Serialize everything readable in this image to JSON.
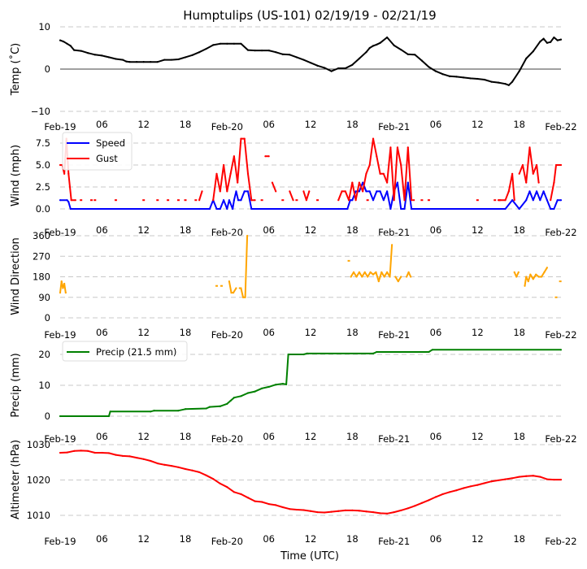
{
  "title": "Humptulips (US-101) 02/19/19 - 02/21/19",
  "xlabel": "Time (UTC)",
  "x_tick_labels": [
    "Feb-19",
    "06",
    "12",
    "18",
    "Feb-20",
    "06",
    "12",
    "18",
    "Feb-21",
    "06",
    "12",
    "18",
    "Feb-22"
  ],
  "chart_data": [
    {
      "type": "line",
      "name": "temperature",
      "ylabel": "Temp ($^\\circ$C)",
      "ylabel_display": "Temp (˚C)",
      "x_unit": "hours since 2019-02-19 00:00 UTC",
      "xlim": [
        0,
        72
      ],
      "ylim": [
        -10,
        10
      ],
      "yticks": [
        -10,
        0,
        10
      ],
      "ytick_labels": [
        "−10",
        "0",
        "10"
      ],
      "grid": "horizontal dashed",
      "zero_line": true,
      "series": [
        {
          "name": "Temp",
          "color": "#000000",
          "x": [
            0,
            0.5,
            1,
            1.5,
            2,
            3,
            4,
            5,
            6,
            7,
            8,
            9,
            9.5,
            10,
            11,
            12,
            13,
            14,
            15,
            16,
            17,
            18,
            19,
            20,
            21,
            22,
            23,
            24,
            25,
            26,
            27,
            28,
            29,
            30,
            31,
            32,
            33,
            34,
            35,
            36,
            37,
            38,
            39,
            40,
            41,
            42,
            43,
            44,
            44.5,
            45,
            45.5,
            46,
            47,
            48,
            49,
            50,
            51,
            52,
            53,
            54,
            55,
            56,
            57,
            58,
            59,
            60,
            61,
            62,
            63,
            64,
            64.5,
            65,
            66,
            67,
            68,
            69,
            69.5,
            70,
            70.5,
            71,
            71.5,
            72
          ],
          "y": [
            6.8,
            6.5,
            6.0,
            5.5,
            4.5,
            4.3,
            3.8,
            3.4,
            3.2,
            2.8,
            2.4,
            2.2,
            1.8,
            1.7,
            1.7,
            1.7,
            1.7,
            1.7,
            2.2,
            2.2,
            2.3,
            2.8,
            3.3,
            4.0,
            4.8,
            5.7,
            6.0,
            6.0,
            6.0,
            6.0,
            4.5,
            4.4,
            4.4,
            4.4,
            4.0,
            3.5,
            3.4,
            2.8,
            2.2,
            1.5,
            0.8,
            0.3,
            -0.5,
            0.2,
            0.2,
            1.0,
            2.5,
            4.0,
            5.0,
            5.5,
            5.8,
            6.2,
            7.5,
            5.6,
            4.6,
            3.5,
            3.4,
            2.0,
            0.5,
            -0.5,
            -1.2,
            -1.7,
            -1.8,
            -2.0,
            -2.2,
            -2.3,
            -2.5,
            -3.0,
            -3.2,
            -3.5,
            -3.8,
            -3.0,
            -0.5,
            2.5,
            4.2,
            6.5,
            7.2,
            6.2,
            6.4,
            7.5,
            6.8,
            7.0
          ]
        }
      ]
    },
    {
      "type": "line",
      "name": "wind",
      "ylabel": "Wind (mph)",
      "xlim": [
        0,
        72
      ],
      "ylim": [
        0,
        8
      ],
      "yticks": [
        0,
        2.5,
        5.0,
        7.5
      ],
      "ytick_labels": [
        "0.0",
        "2.5",
        "5.0",
        "7.5"
      ],
      "grid": "horizontal dashed",
      "legend": "top-left",
      "series": [
        {
          "name": "Speed",
          "color": "#0000ff",
          "x": [
            0,
            1,
            1.2,
            1.5,
            20,
            21.5,
            22,
            22.5,
            23,
            23.5,
            24,
            24.3,
            24.8,
            25,
            25.3,
            25.6,
            26,
            26.5,
            27,
            27.5,
            40,
            41.3,
            41.7,
            42,
            42.5,
            43,
            43.5,
            44,
            44.5,
            45,
            45.5,
            46,
            46.5,
            47,
            47.5,
            48,
            48.5,
            49,
            49.5,
            50,
            50.5,
            64,
            65,
            66,
            67,
            67.5,
            68,
            68.5,
            69,
            69.5,
            70,
            70.5,
            71,
            71.5,
            72
          ],
          "y": [
            1,
            1,
            0.8,
            0,
            0,
            0,
            1,
            0,
            0,
            1,
            0,
            1,
            0,
            1,
            2,
            1,
            1,
            2,
            2,
            0,
            0,
            0,
            1,
            1,
            2,
            2,
            3,
            2,
            2,
            1,
            2,
            2,
            1,
            2,
            0,
            2,
            3,
            0,
            0,
            3,
            0,
            0,
            1,
            0,
            1,
            2,
            1,
            2,
            1,
            2,
            1,
            0,
            0,
            1,
            1
          ]
        },
        {
          "name": "Gust",
          "color": "#ff0000",
          "segments": [
            {
              "x": [
                0,
                0.3,
                0.6,
                0.9,
                1.2,
                1.6,
                2.2
              ],
              "y": [
                5,
                5,
                4,
                8,
                4,
                1,
                1
              ]
            },
            {
              "x": [
                20,
                20.4
              ],
              "y": [
                1,
                2
              ]
            },
            {
              "x": [
                22,
                22.5,
                23,
                23.5,
                24,
                24.5,
                25,
                25.5,
                26,
                26.5,
                27,
                27.5,
                28
              ],
              "y": [
                1,
                4,
                2,
                5,
                2,
                4,
                6,
                3,
                8,
                8,
                4,
                1,
                1
              ]
            },
            {
              "x": [
                29.5,
                30
              ],
              "y": [
                6,
                6
              ]
            },
            {
              "x": [
                30.5,
                31
              ],
              "y": [
                3,
                2
              ]
            },
            {
              "x": [
                33,
                33.5
              ],
              "y": [
                2,
                1
              ]
            },
            {
              "x": [
                35,
                35.4,
                35.8
              ],
              "y": [
                2,
                1,
                2
              ]
            },
            {
              "x": [
                40,
                40.5,
                41,
                41.5,
                42,
                42.5,
                43,
                43.5,
                44,
                44.5,
                45,
                45.5,
                46,
                46.5,
                47,
                47.5,
                48,
                48.5,
                49,
                49.5,
                50,
                50.5
              ],
              "y": [
                1,
                2,
                2,
                1,
                3,
                1,
                3,
                2,
                4,
                5,
                8,
                6,
                4,
                4,
                3,
                7,
                1,
                7,
                5,
                1,
                7,
                1
              ]
            },
            {
              "x": [
                63,
                64,
                64.5,
                65,
                65.3
              ],
              "y": [
                1,
                1,
                2,
                4,
                1
              ]
            },
            {
              "x": [
                66,
                66.5,
                67,
                67.5,
                68,
                68.5,
                68.8
              ],
              "y": [
                4,
                5,
                3,
                7,
                4,
                5,
                3
              ]
            },
            {
              "x": [
                70.5,
                71,
                71.3,
                71.8,
                72
              ],
              "y": [
                1,
                3,
                5,
                5,
                5
              ]
            }
          ],
          "points": {
            "x": [
              3,
              4.5,
              5,
              8,
              12,
              14,
              15.5,
              17,
              18,
              19.5,
              29,
              32,
              34,
              37,
              44.2,
              50.8,
              52,
              53,
              60,
              62.5,
              63.2
            ],
            "y": [
              1,
              1,
              1,
              1,
              1,
              1,
              1,
              1,
              1,
              1,
              1,
              1,
              1,
              1,
              1,
              1,
              1,
              1,
              1,
              1,
              1
            ]
          }
        }
      ]
    },
    {
      "type": "line",
      "name": "wind_direction",
      "ylabel": "Wind Direction",
      "xlim": [
        0,
        72
      ],
      "ylim": [
        0,
        360
      ],
      "yticks": [
        0,
        90,
        180,
        270,
        360
      ],
      "ytick_labels": [
        "0",
        "90",
        "180",
        "270",
        "360"
      ],
      "grid": "horizontal dashed",
      "series": [
        {
          "name": "Wind Direction",
          "color": "#ffa500",
          "segments": [
            {
              "x": [
                0,
                0.2,
                0.4,
                0.6,
                0.8
              ],
              "y": [
                110,
                160,
                130,
                150,
                110
              ]
            },
            {
              "x": [
                24.3,
                24.6,
                24.9,
                25.3
              ],
              "y": [
                160,
                110,
                110,
                130
              ]
            },
            {
              "x": [
                25.8,
                26,
                26.3,
                26.6,
                26.9
              ],
              "y": [
                130,
                130,
                90,
                90,
                360
              ]
            },
            {
              "x": [
                41.8,
                42.2,
                42.6,
                43,
                43.4,
                43.8,
                44.2,
                44.6,
                45,
                45.4,
                45.8,
                46.2,
                46.6,
                47,
                47.4,
                47.7
              ],
              "y": [
                180,
                200,
                180,
                200,
                180,
                200,
                180,
                200,
                190,
                200,
                160,
                200,
                180,
                200,
                180,
                320
              ]
            },
            {
              "x": [
                48.2,
                48.6,
                49
              ],
              "y": [
                180,
                160,
                180
              ]
            },
            {
              "x": [
                49.8,
                50.1,
                50.4
              ],
              "y": [
                180,
                200,
                180
              ]
            },
            {
              "x": [
                65.3,
                65.6,
                65.9
              ],
              "y": [
                200,
                180,
                200
              ]
            },
            {
              "x": [
                66.8,
                67,
                67.3,
                67.6,
                68,
                68.4,
                68.8,
                69.2,
                69.6,
                70
              ],
              "y": [
                140,
                180,
                160,
                190,
                170,
                190,
                180,
                180,
                200,
                220
              ]
            }
          ],
          "points": {
            "x": [
              22.5,
              23.2,
              41.5,
              71.3,
              71.9
            ],
            "y": [
              140,
              140,
              250,
              90,
              160
            ]
          }
        }
      ]
    },
    {
      "type": "line",
      "name": "precipitation",
      "ylabel": "Precip (mm)",
      "xlim": [
        0,
        72
      ],
      "ylim": [
        -2,
        24
      ],
      "yticks": [
        0,
        10,
        20
      ],
      "ytick_labels": [
        "0",
        "10",
        "20"
      ],
      "grid": "horizontal dashed",
      "legend": "top-left",
      "series": [
        {
          "name": "Precip (21.5 mm)",
          "color": "#008000",
          "x": [
            0,
            7,
            7.2,
            13,
            13.5,
            17,
            18,
            21,
            21.5,
            23,
            24,
            24.5,
            25,
            26,
            27,
            28,
            29,
            30,
            31,
            32,
            32.5,
            32.8,
            33,
            35,
            35.5,
            45,
            45.5,
            53,
            53.5,
            72
          ],
          "y": [
            0,
            0,
            1.5,
            1.5,
            1.8,
            1.8,
            2.3,
            2.5,
            3.0,
            3.2,
            4.0,
            5.0,
            6.0,
            6.5,
            7.5,
            8.0,
            9.0,
            9.5,
            10.2,
            10.5,
            10.3,
            20,
            20,
            20,
            20.3,
            20.3,
            20.8,
            20.8,
            21.5,
            21.5
          ]
        }
      ]
    },
    {
      "type": "line",
      "name": "altimeter",
      "ylabel": "Altimeter (hPa)",
      "xlabel": "Time (UTC)",
      "xlim": [
        0,
        72
      ],
      "ylim": [
        1005,
        1030
      ],
      "yticks": [
        1010,
        1020,
        1030
      ],
      "ytick_labels": [
        "1010",
        "1020",
        "1030"
      ],
      "grid": "horizontal dashed",
      "series": [
        {
          "name": "Altimeter",
          "color": "#ff0000",
          "x": [
            0,
            1,
            2,
            3,
            4,
            5,
            6,
            7,
            8,
            9,
            10,
            11,
            12,
            13,
            14,
            15,
            16,
            17,
            18,
            19,
            20,
            21,
            22,
            23,
            24,
            25,
            26,
            27,
            28,
            29,
            30,
            31,
            32,
            33,
            34,
            35,
            36,
            37,
            38,
            39,
            40,
            41,
            42,
            43,
            44,
            45,
            46,
            47,
            48,
            49,
            50,
            51,
            52,
            53,
            54,
            55,
            56,
            57,
            58,
            59,
            60,
            61,
            62,
            63,
            64,
            65,
            66,
            67,
            68,
            69,
            70,
            71,
            72
          ],
          "y": [
            1027.7,
            1027.8,
            1028.2,
            1028.3,
            1028.2,
            1027.7,
            1027.7,
            1027.6,
            1027.1,
            1026.8,
            1026.7,
            1026.3,
            1025.9,
            1025.4,
            1024.7,
            1024.3,
            1024.0,
            1023.6,
            1023.1,
            1022.7,
            1022.2,
            1021.3,
            1020.3,
            1019.0,
            1018.0,
            1016.6,
            1016.0,
            1015.0,
            1014.0,
            1013.8,
            1013.2,
            1012.9,
            1012.3,
            1011.8,
            1011.6,
            1011.5,
            1011.2,
            1010.9,
            1010.8,
            1011.0,
            1011.2,
            1011.4,
            1011.4,
            1011.3,
            1011.1,
            1010.9,
            1010.6,
            1010.5,
            1010.9,
            1011.4,
            1012.0,
            1012.7,
            1013.5,
            1014.3,
            1015.2,
            1016.0,
            1016.6,
            1017.1,
            1017.7,
            1018.2,
            1018.6,
            1019.1,
            1019.6,
            1019.9,
            1020.2,
            1020.5,
            1020.9,
            1021.1,
            1021.2,
            1020.9,
            1020.2,
            1020.1,
            1020.1
          ]
        }
      ]
    }
  ]
}
